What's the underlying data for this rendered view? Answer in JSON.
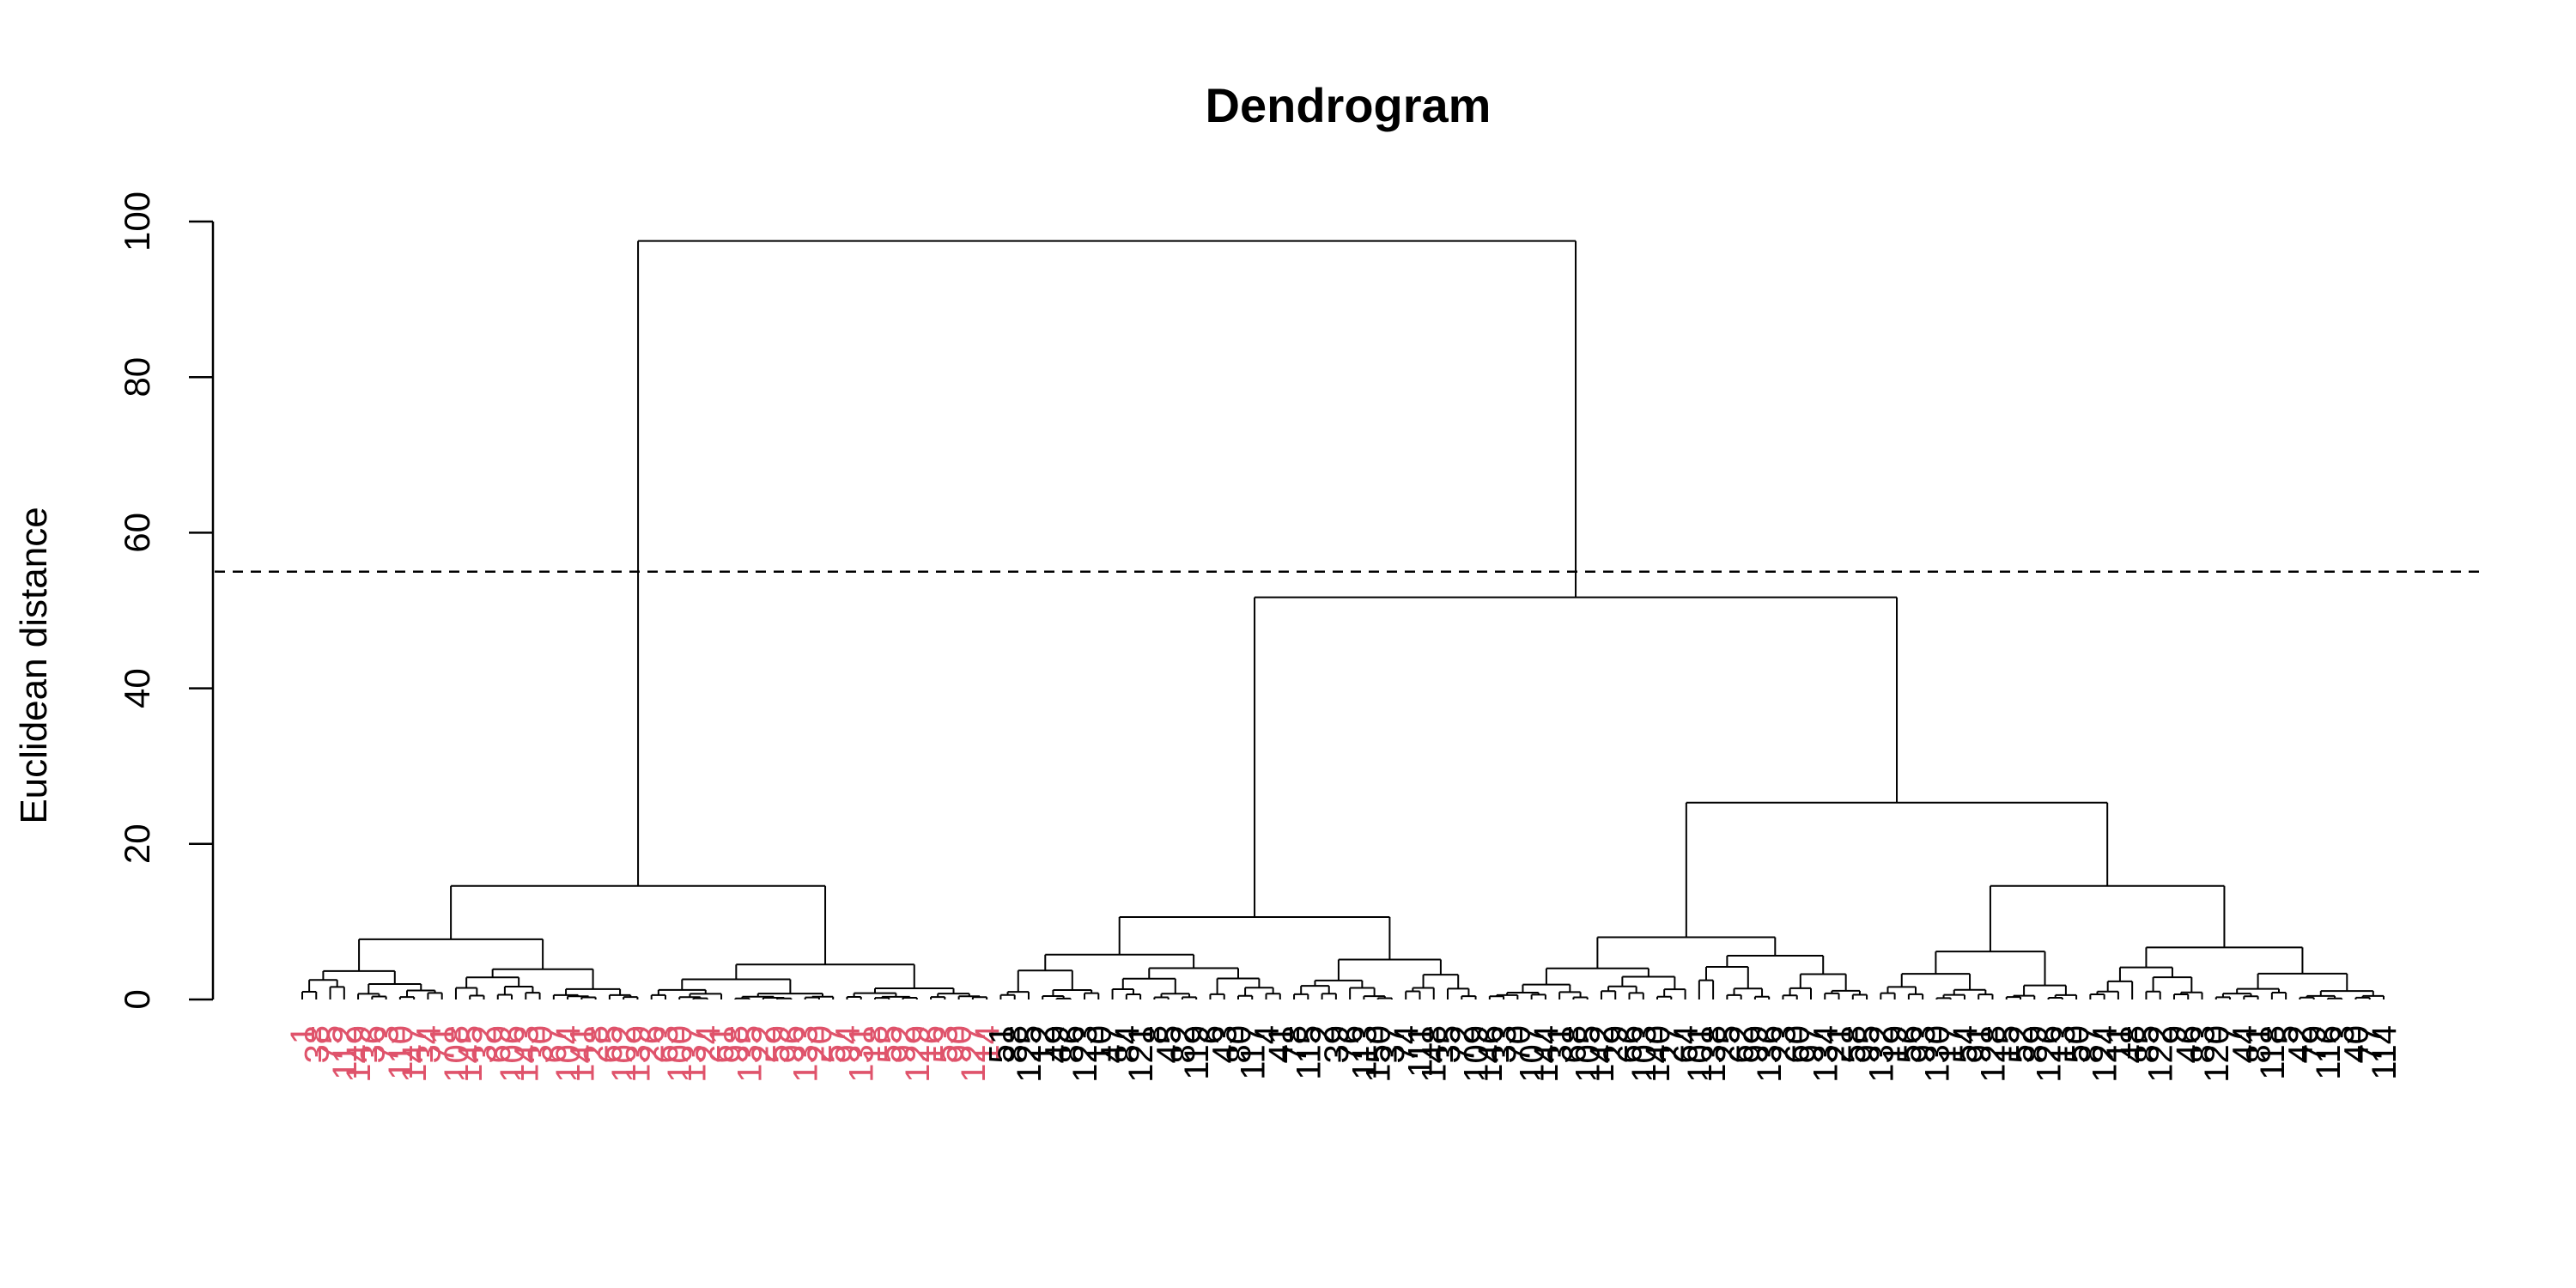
{
  "chart_data": {
    "type": "dendrogram",
    "title": "Dendrogram",
    "xlabel": "",
    "ylabel": "Euclidean distance",
    "ylim": [
      0,
      100
    ],
    "y_ticks": [
      0,
      20,
      40,
      60,
      80,
      100
    ],
    "cut_height": 55,
    "colors": {
      "line": "#000000",
      "leaf_group_1": "#DF536B",
      "leaf_group_other": "#000000"
    },
    "leaf_count": 150,
    "merges": [
      {
        "name": "root",
        "height": 97.5,
        "left": "cluster-a",
        "right": "cluster-bc"
      },
      {
        "name": "cluster-bc",
        "height": 51.7,
        "left": "cluster-b",
        "right": "cluster-c"
      },
      {
        "name": "cluster-c",
        "height": 25.3,
        "left": "cluster-c1",
        "right": "cluster-c2"
      },
      {
        "name": "cluster-a",
        "height": 14.6
      },
      {
        "name": "cluster-c2",
        "height": 14.6
      },
      {
        "name": "cluster-b",
        "height": 10.6
      },
      {
        "name": "cluster-c1",
        "height": 8.0
      }
    ],
    "leaf_labels_note": "150 rotated leaf labels, largely overlapping and illegible at this resolution"
  }
}
